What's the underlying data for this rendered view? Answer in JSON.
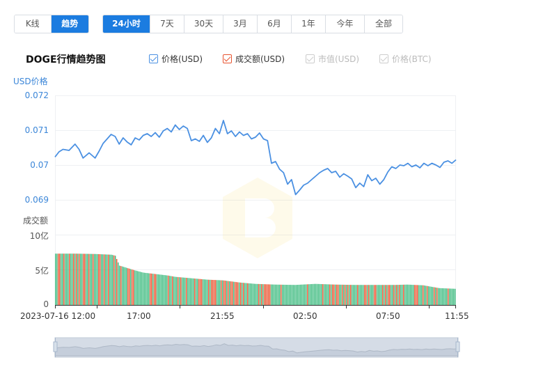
{
  "mode_tabs": [
    {
      "label": "K线",
      "active": false
    },
    {
      "label": "趋势",
      "active": true
    }
  ],
  "range_tabs": [
    {
      "label": "24小时",
      "active": true
    },
    {
      "label": "7天",
      "active": false
    },
    {
      "label": "30天",
      "active": false
    },
    {
      "label": "3月",
      "active": false
    },
    {
      "label": "6月",
      "active": false
    },
    {
      "label": "1年",
      "active": false
    },
    {
      "label": "今年",
      "active": false
    },
    {
      "label": "全部",
      "active": false
    }
  ],
  "chart_title": "DOGE行情趋势图",
  "legend": [
    {
      "label": "价格(USD)",
      "checked": true,
      "color": "#4a90e2",
      "enabled": true
    },
    {
      "label": "成交额(USD)",
      "checked": true,
      "color": "#e8532f",
      "enabled": true
    },
    {
      "label": "市值(USD)",
      "checked": true,
      "color": "#cccccc",
      "enabled": false
    },
    {
      "label": "价格(BTC)",
      "checked": true,
      "color": "#cccccc",
      "enabled": false
    }
  ],
  "price_axis": {
    "title": "USD价格",
    "ticks": [
      "0.072",
      "0.071",
      "0.07",
      "0.069"
    ]
  },
  "volume_axis": {
    "title": "成交额",
    "ticks": [
      "10亿",
      "5亿",
      "0"
    ]
  },
  "x_ticks": [
    "2023-07-16 12:00",
    "17:00",
    "21:55",
    "02:50",
    "07:50",
    "11:55"
  ],
  "chart_data": [
    {
      "type": "line",
      "name": "价格(USD)",
      "color": "#4a90e2",
      "ylim": [
        0.0687,
        0.072
      ],
      "x": [
        0,
        0.01,
        0.02,
        0.035,
        0.05,
        0.06,
        0.07,
        0.085,
        0.1,
        0.11,
        0.12,
        0.13,
        0.14,
        0.15,
        0.16,
        0.17,
        0.18,
        0.19,
        0.2,
        0.21,
        0.22,
        0.23,
        0.24,
        0.25,
        0.26,
        0.27,
        0.28,
        0.29,
        0.3,
        0.31,
        0.32,
        0.33,
        0.34,
        0.35,
        0.36,
        0.37,
        0.38,
        0.39,
        0.4,
        0.41,
        0.42,
        0.43,
        0.44,
        0.45,
        0.46,
        0.47,
        0.48,
        0.49,
        0.5,
        0.51,
        0.52,
        0.53,
        0.54,
        0.55,
        0.56,
        0.57,
        0.58,
        0.59,
        0.6,
        0.61,
        0.62,
        0.63,
        0.64,
        0.65,
        0.66,
        0.67,
        0.68,
        0.69,
        0.7,
        0.71,
        0.72,
        0.73,
        0.74,
        0.75,
        0.76,
        0.77,
        0.78,
        0.79,
        0.8,
        0.81,
        0.82,
        0.83,
        0.84,
        0.85,
        0.86,
        0.87,
        0.88,
        0.89,
        0.9,
        0.91,
        0.92,
        0.93,
        0.94,
        0.95,
        0.96,
        0.97,
        0.98,
        0.99,
        1.0
      ],
      "y": [
        0.07023,
        0.07038,
        0.07045,
        0.07042,
        0.0706,
        0.07045,
        0.0702,
        0.07035,
        0.0702,
        0.0704,
        0.07062,
        0.07075,
        0.07088,
        0.07082,
        0.0706,
        0.07078,
        0.07066,
        0.07058,
        0.07078,
        0.07072,
        0.07085,
        0.0709,
        0.07082,
        0.07093,
        0.0708,
        0.07098,
        0.07105,
        0.07095,
        0.07115,
        0.07102,
        0.07112,
        0.07105,
        0.0707,
        0.07075,
        0.07068,
        0.07085,
        0.07065,
        0.07078,
        0.07105,
        0.0709,
        0.07128,
        0.0709,
        0.07098,
        0.07082,
        0.07095,
        0.07085,
        0.0709,
        0.07075,
        0.0708,
        0.07092,
        0.07075,
        0.0707,
        0.07005,
        0.0701,
        0.06988,
        0.06978,
        0.06945,
        0.06958,
        0.06915,
        0.06928,
        0.06942,
        0.06948,
        0.06958,
        0.06968,
        0.06978,
        0.06985,
        0.0699,
        0.06978,
        0.06982,
        0.06965,
        0.06975,
        0.06968,
        0.0696,
        0.06935,
        0.06948,
        0.06938,
        0.06972,
        0.06955,
        0.06962,
        0.06945,
        0.06958,
        0.0698,
        0.06995,
        0.0699,
        0.07,
        0.06998,
        0.07005,
        0.06995,
        0.07,
        0.06992,
        0.07005,
        0.06998,
        0.07005,
        0.07,
        0.06993,
        0.07008,
        0.07012,
        0.07005,
        0.07015
      ]
    },
    {
      "type": "bar",
      "name": "成交额(USD)",
      "ylim": [
        0,
        1000000000
      ],
      "up_color": "#e8532f",
      "down_color": "#3cba7e",
      "x": [
        0,
        0.05,
        0.1,
        0.12,
        0.14,
        0.15,
        0.16,
        0.2,
        0.22,
        0.25,
        0.28,
        0.3,
        0.34,
        0.38,
        0.42,
        0.46,
        0.5,
        0.55,
        0.6,
        0.65,
        0.7,
        0.75,
        0.8,
        0.85,
        0.88,
        0.9,
        0.92,
        0.94,
        0.96,
        1.0
      ],
      "values": [
        730000000,
        730000000,
        725000000,
        720000000,
        715000000,
        700000000,
        560000000,
        490000000,
        460000000,
        440000000,
        420000000,
        400000000,
        380000000,
        360000000,
        350000000,
        320000000,
        300000000,
        290000000,
        285000000,
        300000000,
        290000000,
        285000000,
        285000000,
        285000000,
        290000000,
        285000000,
        280000000,
        260000000,
        240000000,
        230000000
      ]
    }
  ]
}
